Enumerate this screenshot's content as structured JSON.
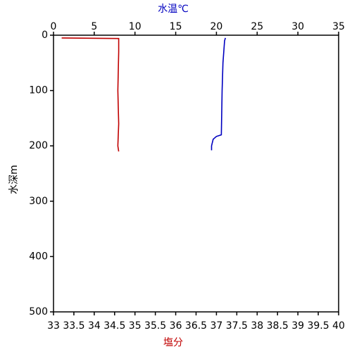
{
  "chart_data": {
    "type": "line",
    "x_label": "塩分",
    "x_label_color": "#c00000",
    "x2_label": "水温℃",
    "x2_label_color": "#0000c0",
    "y_label": "水深m",
    "xlim": [
      33,
      40
    ],
    "xticks": [
      33,
      33.5,
      34,
      34.5,
      35,
      35.5,
      36,
      36.5,
      37,
      37.5,
      38,
      38.5,
      39,
      39.5,
      40
    ],
    "x2lim": [
      0,
      35
    ],
    "x2ticks": [
      0,
      5,
      10,
      15,
      20,
      25,
      30,
      35
    ],
    "ylim": [
      0,
      500
    ],
    "yticks": [
      0,
      100,
      200,
      300,
      400,
      500
    ],
    "y_inverted": true,
    "series": [
      {
        "color": "#0000c0",
        "axis": "x2",
        "depth": [
          5,
          10,
          50,
          100,
          180,
          183,
          188,
          200,
          208
        ],
        "values": [
          21.1,
          21.0,
          20.8,
          20.7,
          20.6,
          20.0,
          19.6,
          19.4,
          19.4
        ]
      },
      {
        "color": "#c00000",
        "axis": "x",
        "depth": [
          5,
          6,
          30,
          100,
          160,
          200,
          210
        ],
        "values": [
          33.2,
          34.6,
          34.6,
          34.58,
          34.6,
          34.58,
          34.6
        ]
      }
    ]
  }
}
